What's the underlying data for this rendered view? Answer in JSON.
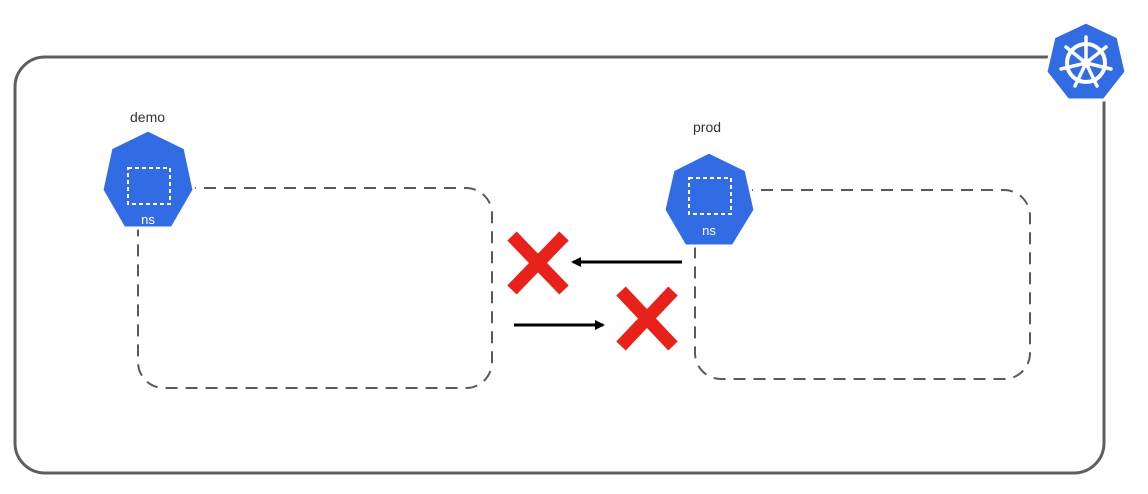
{
  "namespaces": [
    {
      "label": "demo",
      "icon_text": "ns"
    },
    {
      "label": "prod",
      "icon_text": "ns"
    }
  ],
  "cluster": {
    "icon": "kubernetes-helm-icon"
  },
  "connections": [
    {
      "direction": "prod-to-demo",
      "status": "blocked",
      "icon": "x-icon"
    },
    {
      "direction": "demo-to-prod",
      "status": "blocked",
      "icon": "x-icon"
    }
  ],
  "colors": {
    "k8s_blue": "#326CE5",
    "blocked_red": "#E8211B",
    "border": "#5F5F5F",
    "dash": "#5A5A5A"
  }
}
